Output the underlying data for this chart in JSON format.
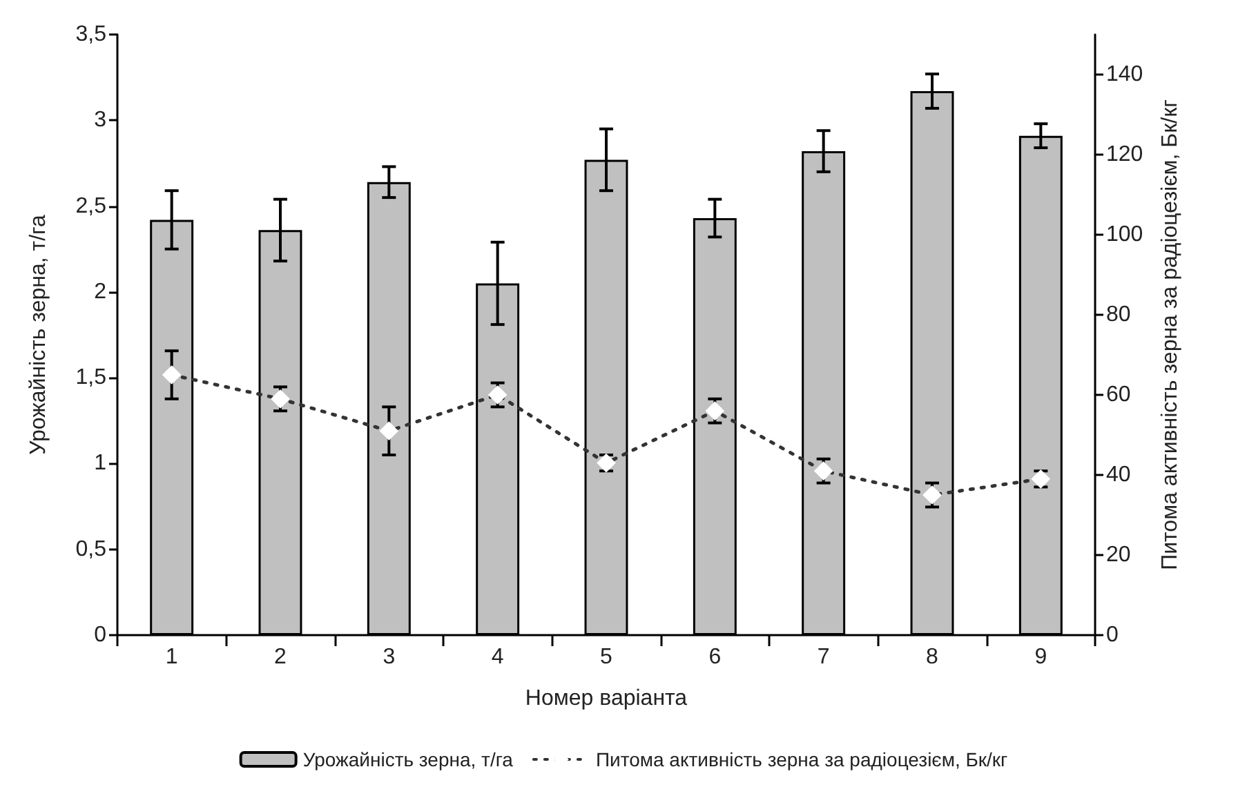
{
  "chart_data": {
    "type": "bar",
    "xlabel": "Номер варіанта",
    "ylabel": "Урожайність зерна, т/га",
    "y2label": "Питома активність зерна за радіоцезієм, Бк/кг",
    "categories": [
      "1",
      "2",
      "3",
      "4",
      "5",
      "6",
      "7",
      "8",
      "9"
    ],
    "series": [
      {
        "name": "Урожайність зерна, т/га",
        "color": "#c0c0c0",
        "values": [
          2.42,
          2.36,
          2.64,
          2.05,
          2.77,
          2.43,
          2.82,
          3.17,
          2.91
        ],
        "errors": [
          0.17,
          0.18,
          0.09,
          0.24,
          0.18,
          0.11,
          0.12,
          0.1,
          0.07
        ]
      },
      {
        "name": "Питома активність зерна за радіоцезієм, Бк/кг",
        "type": "line",
        "axis": "y2",
        "color": "#333333",
        "marker": "diamond",
        "line_style": "dotted",
        "values": [
          65,
          59,
          51,
          60,
          43,
          56,
          41,
          35,
          39
        ],
        "errors": [
          6,
          3,
          6,
          3,
          2,
          3,
          3,
          3,
          2
        ]
      }
    ],
    "ylim": [
      0,
      3.5
    ],
    "yticks": [
      0,
      {
        "value": 0.5,
        "label": "0,5"
      },
      1,
      {
        "value": 1.5,
        "label": "1,5"
      },
      2,
      {
        "value": 2.5,
        "label": "2,5"
      },
      3,
      {
        "value": 3.5,
        "label": "3,5"
      }
    ],
    "y2lim": [
      0,
      150
    ],
    "y2ticks": [
      0,
      20,
      40,
      60,
      80,
      100,
      120,
      140
    ],
    "grid": false,
    "legend": "bottom"
  }
}
